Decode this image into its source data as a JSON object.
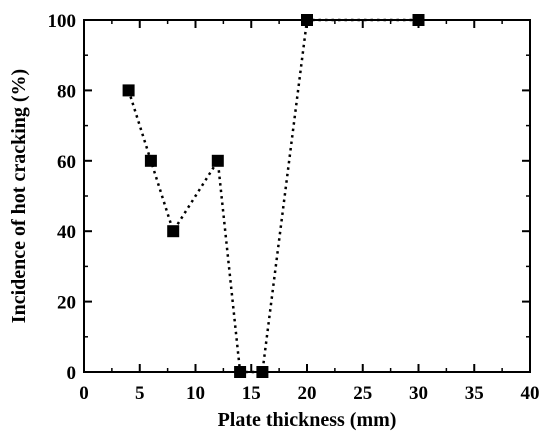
{
  "chart_data": {
    "type": "scatter",
    "title": "",
    "xlabel": "Plate thickness (mm)",
    "ylabel": "Incidence of hot cracking (%)",
    "xlim": [
      0,
      40
    ],
    "ylim": [
      0,
      100
    ],
    "xticks": [
      0,
      5,
      10,
      15,
      20,
      25,
      30,
      35,
      40
    ],
    "yticks": [
      0,
      20,
      40,
      60,
      80,
      100
    ],
    "grid": false,
    "legend": "none",
    "line_style": "dotted",
    "marker": "square",
    "color": "#000000",
    "series": [
      {
        "x": [
          4,
          6,
          8,
          12,
          14,
          16,
          20,
          30
        ],
        "y": [
          80,
          60,
          40,
          60,
          0,
          0,
          100,
          100
        ]
      }
    ]
  }
}
